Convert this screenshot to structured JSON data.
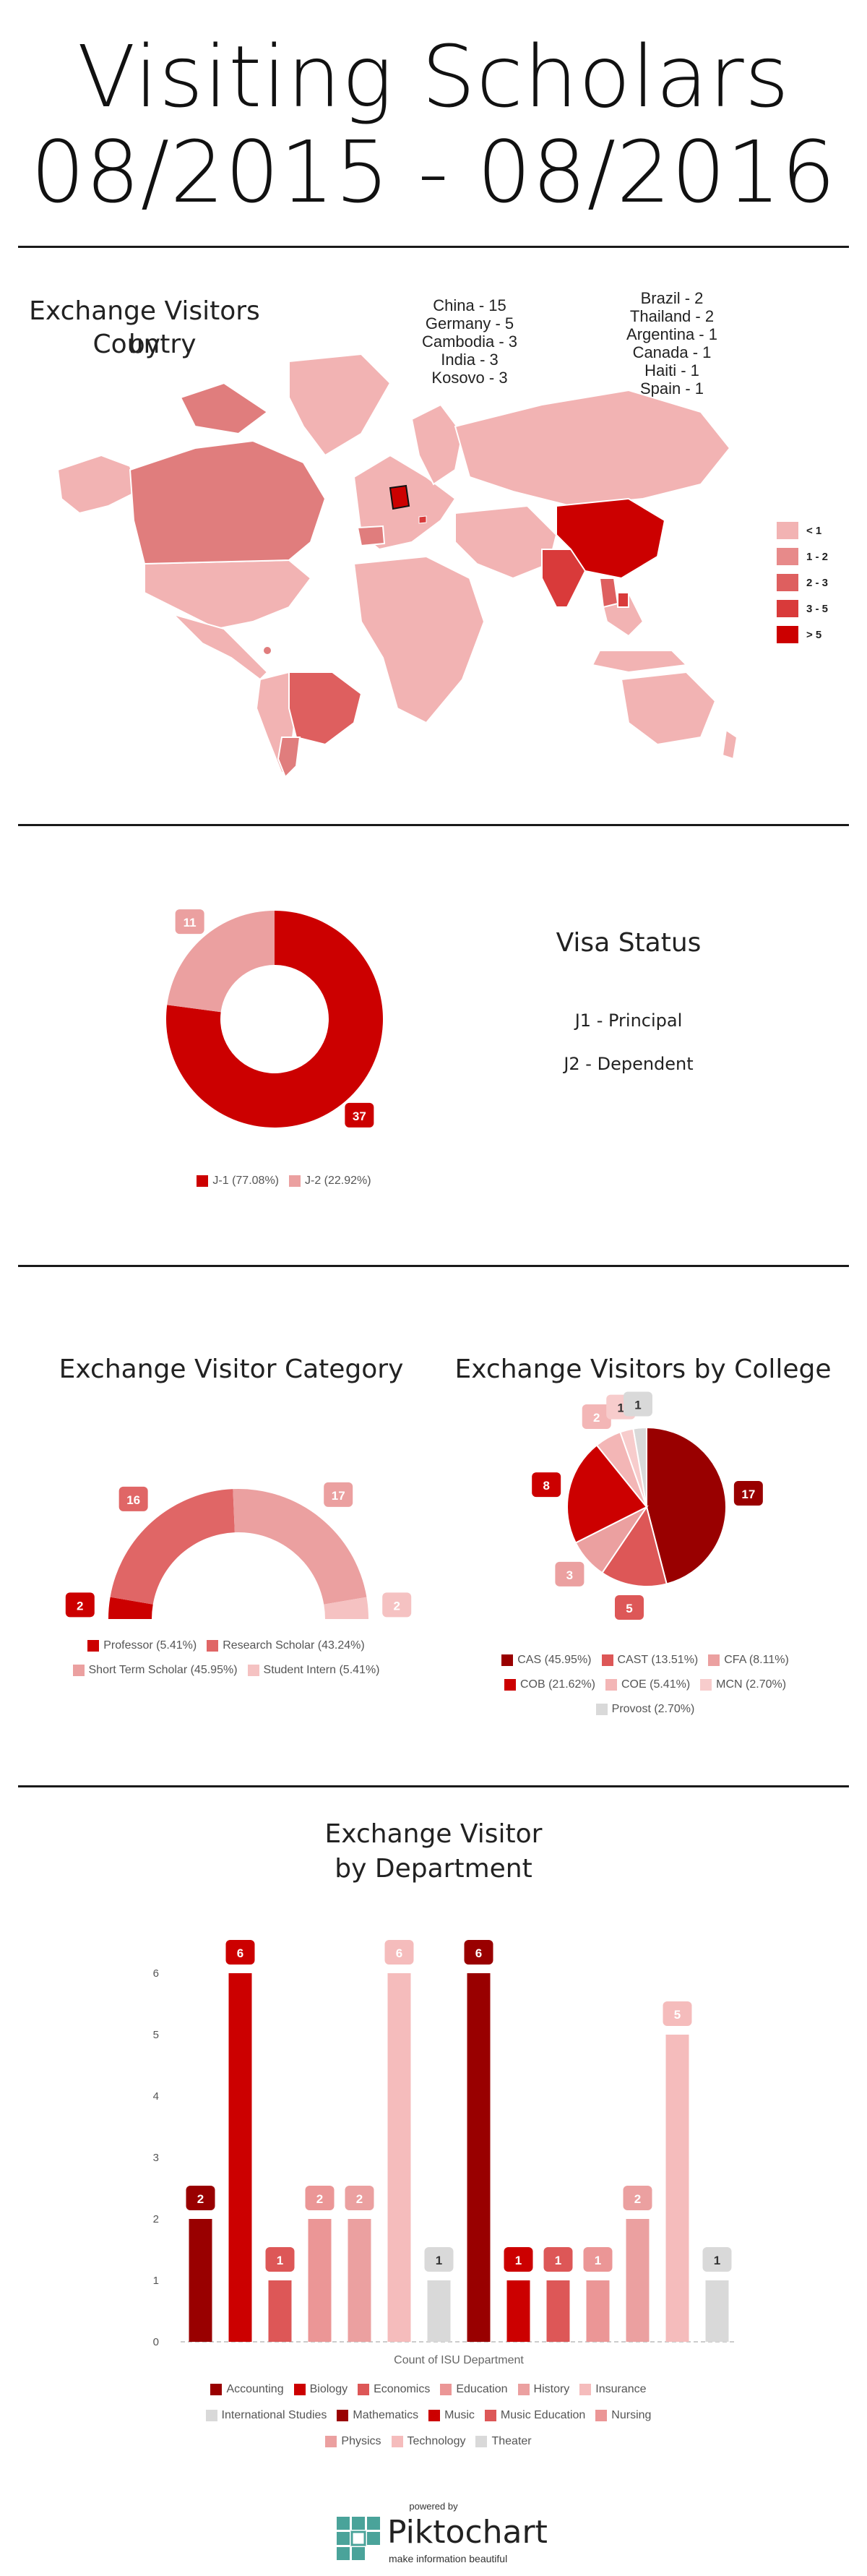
{
  "header": {
    "title_line1": "Visiting Scholars",
    "title_line2": "08/2015 - 08/2016"
  },
  "map_section": {
    "title_line1": "Exchange Visitors by",
    "title_line2": "Country",
    "note_left": [
      "China - 15",
      "Germany - 5",
      "Cambodia - 3",
      "India - 3",
      "Kosovo - 3"
    ],
    "note_right": [
      "Brazil - 2",
      "Thailand - 2",
      "Argentina - 1",
      "Canada - 1",
      "Haiti - 1",
      "Spain - 1"
    ],
    "legend": [
      {
        "label": "< 1",
        "color": "#f2b3b3"
      },
      {
        "label": "1 - 2",
        "color": "#e78a8a"
      },
      {
        "label": "2 - 3",
        "color": "#de5f5f"
      },
      {
        "label": "3 - 5",
        "color": "#d93a3a"
      },
      {
        "label": "> 5",
        "color": "#cc0000"
      }
    ]
  },
  "visa_section": {
    "title": "Visa Status",
    "items": [
      "J1 - Principal",
      "J2 - Dependent"
    ]
  },
  "category_section": {
    "title": "Exchange Visitor Category"
  },
  "college_section": {
    "title": "Exchange Visitors by College"
  },
  "department_section": {
    "title_line1": "Exchange Visitor",
    "title_line2": "by Department"
  },
  "footer": {
    "powered_by": "powered by",
    "brand": "Piktochart",
    "tagline": "make information beautiful"
  },
  "chart_data": [
    {
      "type": "pie",
      "name": "visa",
      "title": "Visa Status",
      "donut": true,
      "categories": [
        "J-1 (77.08%)",
        "J-2 (22.92%)"
      ],
      "values": [
        37,
        11
      ],
      "colors": [
        "#cc0000",
        "#eba0a0"
      ]
    },
    {
      "type": "pie",
      "name": "category",
      "title": "Exchange Visitor Category",
      "semicircle": true,
      "categories": [
        "Professor (5.41%)",
        "Research Scholar (43.24%)",
        "Short Term Scholar (45.95%)",
        "Student Intern (5.41%)"
      ],
      "values": [
        2,
        16,
        17,
        2
      ],
      "colors": [
        "#cc0000",
        "#e06666",
        "#eba0a0",
        "#f5c2c2"
      ]
    },
    {
      "type": "pie",
      "name": "college",
      "title": "Exchange Visitors by College",
      "categories": [
        "CAS (45.95%)",
        "CAST (13.51%)",
        "CFA (8.11%)",
        "COB (21.62%)",
        "COE (5.41%)",
        "MCN (2.70%)",
        "Provost (2.70%)"
      ],
      "values": [
        17,
        5,
        3,
        8,
        2,
        1,
        1
      ],
      "colors": [
        "#990000",
        "#dd5757",
        "#eba0a0",
        "#cc0000",
        "#f3b6b6",
        "#f7cccc",
        "#d9d9d9"
      ]
    },
    {
      "type": "bar",
      "name": "department",
      "title": "Exchange Visitor by Department",
      "xlabel": "Count of ISU Department",
      "ylabel": "",
      "ylim": [
        0,
        6
      ],
      "yticks": [
        "0",
        "1",
        "2",
        "3",
        "4",
        "5",
        "6"
      ],
      "categories": [
        "Accounting",
        "Biology",
        "Economics",
        "Education",
        "History",
        "Insurance",
        "International Studies",
        "Mathematics",
        "Music",
        "Music Education",
        "Nursing",
        "Physics",
        "Technology",
        "Theater"
      ],
      "values": [
        2,
        6,
        1,
        2,
        2,
        6,
        1,
        6,
        1,
        1,
        1,
        2,
        5,
        1
      ],
      "colors": [
        "#990000",
        "#cc0000",
        "#dd5757",
        "#eb9696",
        "#eba0a0",
        "#f5bcbc",
        "#d9d9d9",
        "#990000",
        "#cc0000",
        "#dd5757",
        "#eb9696",
        "#eba0a0",
        "#f5bcbc",
        "#d9d9d9"
      ]
    }
  ]
}
